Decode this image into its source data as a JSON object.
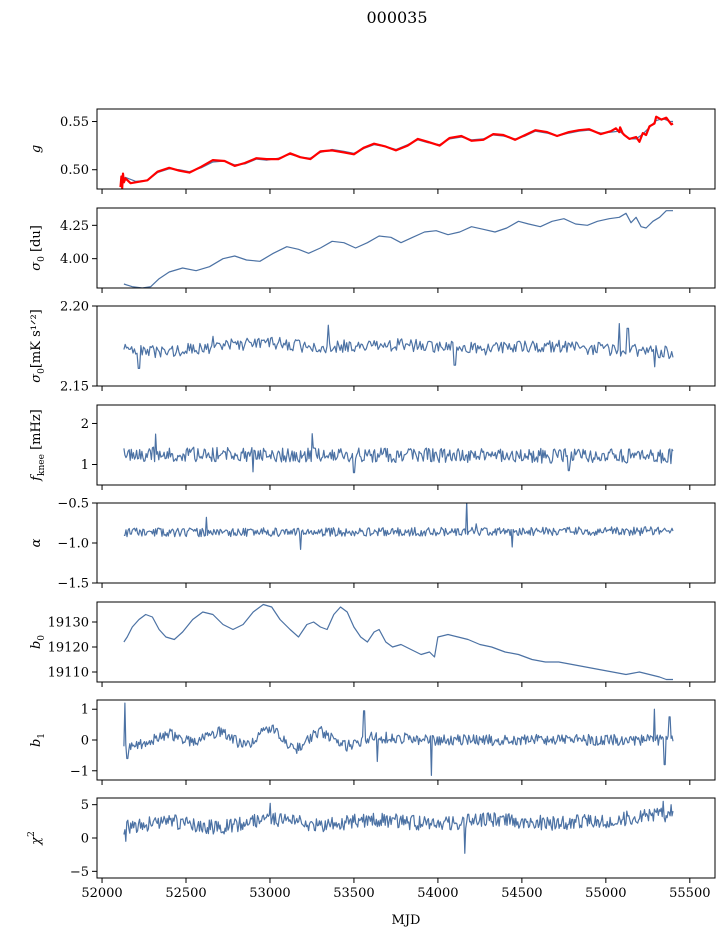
{
  "figure": {
    "title": "000035"
  },
  "x_axis": {
    "label": "MJD",
    "lim": [
      51970,
      55650
    ],
    "ticks": [
      52000,
      52500,
      53000,
      53500,
      54000,
      54500,
      55000,
      55500
    ],
    "tick_labels": [
      "52000",
      "52500",
      "53000",
      "53500",
      "54000",
      "54500",
      "55000",
      "55500"
    ]
  },
  "colors": {
    "line": "#4c72a4",
    "highlight": "#ff0000",
    "axes": "#000000"
  },
  "chart_data": [
    {
      "type": "line",
      "ylabel": "g",
      "ylim": [
        0.48,
        0.563
      ],
      "yticks": [
        0.5,
        0.55
      ],
      "ytick_labels": [
        "0.50",
        "0.55"
      ],
      "series": [
        {
          "style": "line",
          "x": [
            52110,
            52140,
            52200,
            52270,
            52330,
            52400,
            52460,
            52520,
            52590,
            52660,
            52730,
            52790,
            52850,
            52920,
            52980,
            53050,
            53120,
            53180,
            53240,
            53300,
            53370,
            53440,
            53500,
            53560,
            53620,
            53690,
            53750,
            53820,
            53880,
            53940,
            54010,
            54070,
            54140,
            54200,
            54270,
            54330,
            54390,
            54460,
            54520,
            54580,
            54650,
            54710,
            54780,
            54840,
            54900,
            54970,
            55030,
            55080,
            55110,
            55140,
            55180,
            55220,
            55260,
            55300,
            55340,
            55380,
            55400
          ],
          "y": [
            0.488,
            0.492,
            0.488,
            0.489,
            0.497,
            0.501,
            0.5,
            0.498,
            0.502,
            0.508,
            0.509,
            0.505,
            0.506,
            0.511,
            0.51,
            0.512,
            0.516,
            0.513,
            0.512,
            0.518,
            0.521,
            0.519,
            0.517,
            0.522,
            0.526,
            0.524,
            0.521,
            0.526,
            0.531,
            0.528,
            0.526,
            0.532,
            0.534,
            0.531,
            0.532,
            0.536,
            0.535,
            0.532,
            0.535,
            0.54,
            0.538,
            0.535,
            0.538,
            0.54,
            0.541,
            0.538,
            0.539,
            0.54,
            0.536,
            0.532,
            0.532,
            0.537,
            0.544,
            0.551,
            0.553,
            0.55,
            0.55
          ]
        },
        {
          "style": "line-highlight",
          "x": [
            52110,
            52115,
            52120,
            52125,
            52130,
            52140,
            52170,
            52200,
            52270,
            52330,
            52400,
            52460,
            52520,
            52590,
            52660,
            52730,
            52790,
            52850,
            52920,
            52980,
            53050,
            53120,
            53180,
            53240,
            53300,
            53370,
            53440,
            53500,
            53560,
            53620,
            53690,
            53750,
            53820,
            53880,
            53940,
            54010,
            54070,
            54140,
            54200,
            54270,
            54330,
            54390,
            54460,
            54520,
            54580,
            54650,
            54710,
            54780,
            54840,
            54900,
            54970,
            55030,
            55060,
            55080,
            55085,
            55100,
            55110,
            55140,
            55180,
            55200,
            55220,
            55240,
            55260,
            55290,
            55300,
            55330,
            55360,
            55390,
            55400
          ],
          "y": [
            0.482,
            0.493,
            0.481,
            0.496,
            0.487,
            0.491,
            0.486,
            0.487,
            0.489,
            0.498,
            0.502,
            0.499,
            0.497,
            0.503,
            0.51,
            0.509,
            0.504,
            0.507,
            0.512,
            0.511,
            0.511,
            0.517,
            0.513,
            0.511,
            0.519,
            0.52,
            0.518,
            0.516,
            0.523,
            0.527,
            0.524,
            0.52,
            0.525,
            0.532,
            0.529,
            0.525,
            0.533,
            0.535,
            0.53,
            0.531,
            0.537,
            0.536,
            0.531,
            0.536,
            0.541,
            0.539,
            0.535,
            0.539,
            0.541,
            0.542,
            0.537,
            0.54,
            0.543,
            0.539,
            0.544,
            0.538,
            0.536,
            0.532,
            0.534,
            0.529,
            0.538,
            0.536,
            0.545,
            0.548,
            0.555,
            0.552,
            0.554,
            0.547,
            0.548
          ]
        }
      ]
    },
    {
      "type": "line",
      "ylabel": "σ0 [du]",
      "ylim": [
        3.78,
        4.38
      ],
      "yticks": [
        4.0,
        4.25
      ],
      "ytick_labels": [
        "4.00",
        "4.25"
      ],
      "series": [
        {
          "style": "line",
          "x": [
            52130,
            52180,
            52240,
            52290,
            52340,
            52400,
            52480,
            52560,
            52640,
            52720,
            52790,
            52860,
            52940,
            53020,
            53100,
            53170,
            53230,
            53300,
            53370,
            53440,
            53510,
            53580,
            53650,
            53720,
            53780,
            53850,
            53920,
            53990,
            54060,
            54130,
            54200,
            54270,
            54340,
            54410,
            54480,
            54540,
            54610,
            54680,
            54750,
            54820,
            54890,
            54950,
            55020,
            55080,
            55120,
            55150,
            55180,
            55210,
            55240,
            55280,
            55320,
            55360,
            55400
          ],
          "y": [
            3.81,
            3.79,
            3.78,
            3.79,
            3.85,
            3.9,
            3.93,
            3.91,
            3.94,
            4.0,
            4.02,
            3.99,
            3.98,
            4.04,
            4.09,
            4.07,
            4.04,
            4.08,
            4.13,
            4.12,
            4.08,
            4.12,
            4.17,
            4.16,
            4.12,
            4.16,
            4.2,
            4.21,
            4.18,
            4.2,
            4.24,
            4.22,
            4.2,
            4.23,
            4.28,
            4.26,
            4.24,
            4.28,
            4.3,
            4.26,
            4.25,
            4.28,
            4.3,
            4.31,
            4.34,
            4.27,
            4.31,
            4.24,
            4.23,
            4.28,
            4.31,
            4.36,
            4.36
          ]
        }
      ]
    },
    {
      "type": "line",
      "ylabel": "σ0[mK s^1/2]",
      "ylim": [
        2.15,
        2.2
      ],
      "yticks": [
        2.15,
        2.2
      ],
      "ytick_labels": [
        "2.15",
        "2.20"
      ],
      "noise": {
        "seed": 3,
        "n": 420,
        "x_range": [
          52130,
          55400
        ],
        "trend": [
          [
            52130,
            2.172
          ],
          [
            52350,
            2.171
          ],
          [
            52700,
            2.175
          ],
          [
            53000,
            2.177
          ],
          [
            53300,
            2.174
          ],
          [
            53600,
            2.176
          ],
          [
            54000,
            2.175
          ],
          [
            54300,
            2.173
          ],
          [
            54700,
            2.175
          ],
          [
            55000,
            2.173
          ],
          [
            55400,
            2.171
          ]
        ],
        "amplitude": 0.004,
        "spikes": [
          [
            52140,
            2.176
          ],
          [
            52220,
            2.161
          ],
          [
            52660,
            2.181
          ],
          [
            53350,
            2.188
          ],
          [
            54100,
            2.163
          ],
          [
            55080,
            2.189
          ],
          [
            55130,
            2.186
          ],
          [
            55290,
            2.162
          ]
        ]
      }
    },
    {
      "type": "line",
      "ylabel": "f_knee [mHz]",
      "ylim": [
        0.5,
        2.45
      ],
      "yticks": [
        1,
        2
      ],
      "ytick_labels": [
        "1",
        "2"
      ],
      "noise": {
        "seed": 7,
        "n": 520,
        "x_range": [
          52130,
          55400
        ],
        "trend": [
          [
            52130,
            1.25
          ],
          [
            55400,
            1.2
          ]
        ],
        "amplitude": 0.18,
        "spikes": [
          [
            52320,
            1.74
          ],
          [
            53250,
            1.75
          ],
          [
            52900,
            0.82
          ],
          [
            53500,
            0.8
          ],
          [
            54780,
            0.85
          ]
        ]
      }
    },
    {
      "type": "line",
      "ylabel": "α",
      "ylim": [
        -1.5,
        -0.5
      ],
      "yticks": [
        -1.5,
        -1.0,
        -0.5
      ],
      "ytick_labels": [
        "−1.5",
        "−1.0",
        "−0.5"
      ],
      "noise": {
        "seed": 11,
        "n": 520,
        "x_range": [
          52130,
          55400
        ],
        "trend": [
          [
            52130,
            -0.87
          ],
          [
            55400,
            -0.85
          ]
        ],
        "amplitude": 0.055,
        "spikes": [
          [
            52620,
            -0.68
          ],
          [
            54170,
            -0.48
          ],
          [
            54230,
            -0.76
          ],
          [
            53180,
            -1.08
          ],
          [
            54440,
            -1.05
          ]
        ]
      }
    },
    {
      "type": "line",
      "ylabel": "b0",
      "ylim": [
        19106,
        19138
      ],
      "yticks": [
        19110,
        19120,
        19130
      ],
      "ytick_labels": [
        "19110",
        "19120",
        "19130"
      ],
      "series": [
        {
          "style": "line",
          "x": [
            52130,
            52150,
            52180,
            52220,
            52260,
            52300,
            52340,
            52380,
            52430,
            52480,
            52540,
            52600,
            52660,
            52720,
            52780,
            52840,
            52900,
            52960,
            53010,
            53060,
            53120,
            53170,
            53220,
            53260,
            53300,
            53340,
            53380,
            53420,
            53460,
            53500,
            53540,
            53580,
            53620,
            53650,
            53690,
            53730,
            53780,
            53840,
            53900,
            53950,
            53980,
            54000,
            54060,
            54120,
            54180,
            54250,
            54320,
            54400,
            54480,
            54560,
            54640,
            54720,
            54800,
            54880,
            54960,
            55040,
            55120,
            55200,
            55260,
            55320,
            55360,
            55400
          ],
          "y": [
            19122,
            19124,
            19128,
            19131,
            19133,
            19132,
            19127,
            19124,
            19123,
            19126,
            19131,
            19134,
            19133,
            19129,
            19127,
            19129,
            19134,
            19137,
            19136,
            19131,
            19127,
            19124,
            19129,
            19130,
            19128,
            19127,
            19133,
            19136,
            19134,
            19128,
            19124,
            19122,
            19126,
            19127,
            19122,
            19120,
            19121,
            19119,
            19117,
            19118,
            19116,
            19124,
            19125,
            19124,
            19123,
            19121,
            19120,
            19118,
            19117,
            19115,
            19114,
            19114,
            19113,
            19112,
            19111,
            19110,
            19109,
            19110,
            19109,
            19108,
            19107,
            19107
          ]
        }
      ]
    },
    {
      "type": "line",
      "ylabel": "b1",
      "ylim": [
        -1.3,
        1.3
      ],
      "yticks": [
        -1,
        0,
        1
      ],
      "ytick_labels": [
        "−1",
        "0",
        "1"
      ],
      "noise": {
        "seed": 19,
        "n": 560,
        "x_range": [
          52130,
          55400
        ],
        "trend": [
          [
            52130,
            -0.3
          ],
          [
            52250,
            -0.1
          ],
          [
            52400,
            0.2
          ],
          [
            52550,
            -0.1
          ],
          [
            52700,
            0.3
          ],
          [
            52850,
            -0.2
          ],
          [
            53000,
            0.4
          ],
          [
            53150,
            -0.3
          ],
          [
            53300,
            0.3
          ],
          [
            53450,
            -0.2
          ],
          [
            53600,
            0.1
          ],
          [
            54000,
            0.0
          ],
          [
            55400,
            0.0
          ]
        ],
        "amplitude": 0.18,
        "spikes": [
          [
            52135,
            1.2
          ],
          [
            52150,
            -0.6
          ],
          [
            53560,
            0.95
          ],
          [
            53640,
            -0.7
          ],
          [
            53960,
            -1.15
          ],
          [
            55290,
            1.0
          ],
          [
            55350,
            -0.8
          ],
          [
            55380,
            0.75
          ]
        ]
      }
    },
    {
      "type": "line",
      "ylabel": "χ^2",
      "ylim": [
        -6,
        6
      ],
      "yticks": [
        -5,
        0,
        5
      ],
      "ytick_labels": [
        "−5",
        "0",
        "5"
      ],
      "noise": {
        "seed": 23,
        "n": 560,
        "x_range": [
          52130,
          55400
        ],
        "trend": [
          [
            52130,
            1.5
          ],
          [
            52400,
            2.5
          ],
          [
            52700,
            1.5
          ],
          [
            53000,
            3.0
          ],
          [
            53300,
            1.8
          ],
          [
            53600,
            2.8
          ],
          [
            54000,
            2.0
          ],
          [
            54300,
            2.8
          ],
          [
            54700,
            2.2
          ],
          [
            55000,
            2.6
          ],
          [
            55300,
            3.5
          ],
          [
            55400,
            3.5
          ]
        ],
        "amplitude": 1.1,
        "spikes": [
          [
            52140,
            -0.5
          ],
          [
            53000,
            5.2
          ],
          [
            54160,
            -2.3
          ],
          [
            55340,
            5.5
          ],
          [
            55390,
            5.0
          ]
        ]
      }
    }
  ]
}
